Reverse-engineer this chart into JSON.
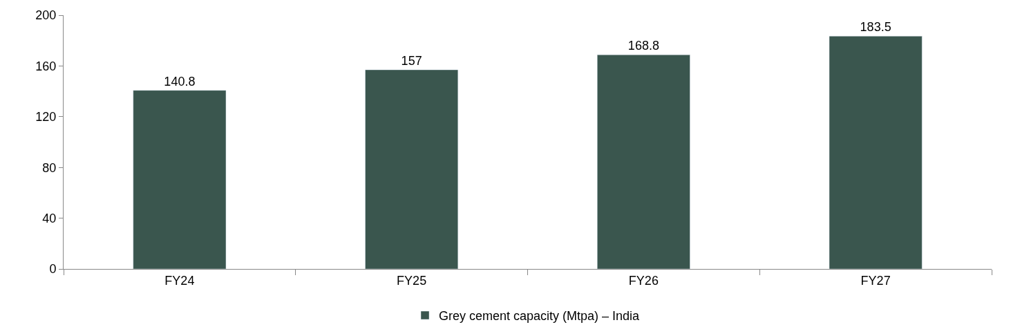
{
  "chart_data": {
    "type": "bar",
    "categories": [
      "FY24",
      "FY25",
      "FY26",
      "FY27"
    ],
    "series": [
      {
        "name": "Grey cement capacity (Mtpa) – India",
        "color": "#3a564e",
        "values": [
          140.8,
          157,
          168.8,
          183.5
        ]
      }
    ],
    "ylim": [
      0,
      200
    ],
    "yticks": [
      0,
      40,
      80,
      120,
      160,
      200
    ],
    "legend": "bottom",
    "data_labels": true
  }
}
